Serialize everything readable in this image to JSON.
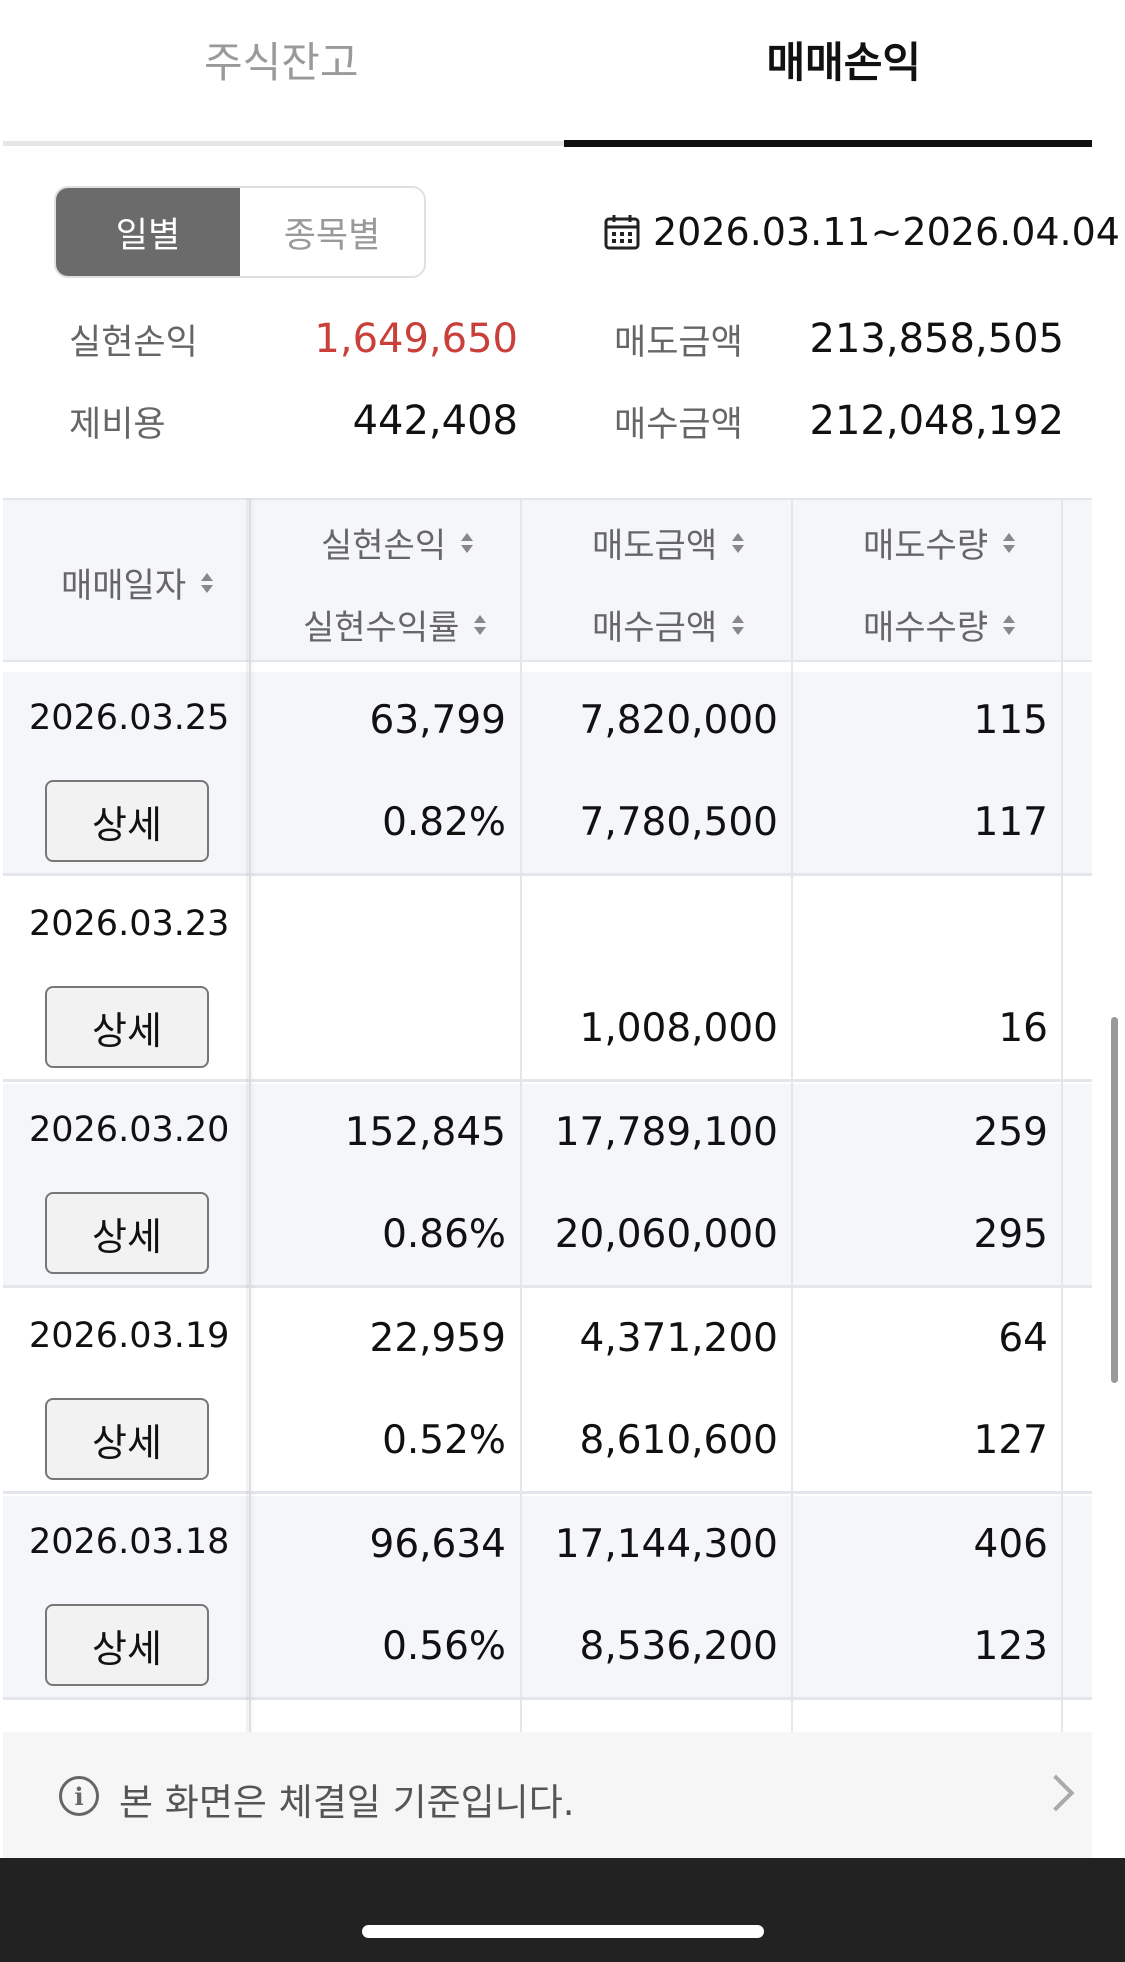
{
  "tabs": [
    {
      "label": "주식잔고",
      "active": false
    },
    {
      "label": "매매손익",
      "active": true
    }
  ],
  "segment": {
    "daily": "일별",
    "by_stock": "종목별",
    "selected": "일별"
  },
  "date_range": "2026.03.11~2026.04.04",
  "summary": {
    "realized_pl_label": "실현손익",
    "realized_pl_value": "1,649,650",
    "sell_amount_label": "매도금액",
    "sell_amount_value": "213,858,505",
    "fees_label": "제비용",
    "fees_value": "442,408",
    "buy_amount_label": "매수금액",
    "buy_amount_value": "212,048,192"
  },
  "table": {
    "headers": {
      "date": "매매일자",
      "realized_pl": "실현손익",
      "realized_rate": "실현수익률",
      "sell_amount": "매도금액",
      "buy_amount": "매수금액",
      "sell_qty": "매도수량",
      "buy_qty": "매수수량"
    },
    "detail_label": "상세",
    "rows": [
      {
        "date": "2026.03.25",
        "pl": "63,799",
        "rate": "0.82%",
        "sell_amt": "7,820,000",
        "buy_amt": "7,780,500",
        "sell_qty": "115",
        "buy_qty": "117"
      },
      {
        "date": "2026.03.23",
        "pl": "",
        "rate": "",
        "sell_amt": "",
        "buy_amt": "1,008,000",
        "sell_qty": "",
        "buy_qty": "16"
      },
      {
        "date": "2026.03.20",
        "pl": "152,845",
        "rate": "0.86%",
        "sell_amt": "17,789,100",
        "buy_amt": "20,060,000",
        "sell_qty": "259",
        "buy_qty": "295"
      },
      {
        "date": "2026.03.19",
        "pl": "22,959",
        "rate": "0.52%",
        "sell_amt": "4,371,200",
        "buy_amt": "8,610,600",
        "sell_qty": "64",
        "buy_qty": "127"
      },
      {
        "date": "2026.03.18",
        "pl": "96,634",
        "rate": "0.56%",
        "sell_amt": "17,144,300",
        "buy_amt": "8,536,200",
        "sell_qty": "406",
        "buy_qty": "123"
      }
    ]
  },
  "notice": {
    "icon": "info-icon",
    "text": "본 화면은 체결일 기준입니다."
  },
  "colors": {
    "profit_red": "#c9403a",
    "segment_selected": "#6b6b6b",
    "row_alt": "#f4f6f9"
  }
}
